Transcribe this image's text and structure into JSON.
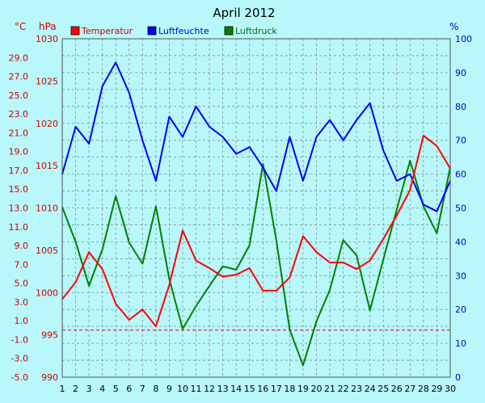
{
  "chart_data": {
    "type": "line",
    "title": "April 2012",
    "units": {
      "temperature": "°C",
      "pressure": "hPa",
      "humidity": "%"
    },
    "x": [
      1,
      2,
      3,
      4,
      5,
      6,
      7,
      8,
      9,
      10,
      11,
      12,
      13,
      14,
      15,
      16,
      17,
      18,
      19,
      20,
      21,
      22,
      23,
      24,
      25,
      26,
      27,
      28,
      29,
      30
    ],
    "series": [
      {
        "name": "Temperatur",
        "axis": "temperature",
        "color": "#ff0000",
        "values": [
          3.3,
          5.1,
          8.3,
          6.5,
          2.8,
          1.1,
          2.2,
          0.4,
          4.8,
          10.6,
          7.4,
          6.6,
          5.7,
          5.9,
          6.6,
          4.2,
          4.2,
          5.6,
          10.0,
          8.3,
          7.2,
          7.2,
          6.5,
          7.4,
          9.7,
          12.2,
          14.9,
          20.7,
          19.6,
          17.2
        ]
      },
      {
        "name": "Luftfeuchte",
        "axis": "humidity",
        "color": "#0000ff",
        "values": [
          60,
          74,
          69,
          86,
          93,
          84,
          70,
          58,
          77,
          71,
          80,
          74,
          71,
          66,
          68,
          62,
          55,
          71,
          58,
          71,
          76,
          70,
          76,
          81,
          67,
          58,
          60,
          51,
          49,
          58
        ]
      },
      {
        "name": "Luftdruck",
        "axis": "pressure",
        "color": "#008000",
        "values": [
          1010.1,
          1006.0,
          1000.8,
          1005.1,
          1011.4,
          1005.9,
          1003.4,
          1010.2,
          1001.6,
          995.7,
          998.4,
          1000.8,
          1003.1,
          1002.7,
          1005.6,
          1015.2,
          1006.2,
          995.6,
          991.4,
          996.6,
          1000.3,
          1006.2,
          1004.4,
          997.9,
          1003.9,
          1009.8,
          1015.6,
          1010.2,
          1007.0,
          1014.8
        ]
      }
    ],
    "reference_line": {
      "axis": "temperature",
      "value": 0,
      "color": "#e00000",
      "style": "dashed"
    },
    "axes": {
      "temperature": {
        "ticks": [
          "-5.0",
          "-3.0",
          "-1.0",
          "1.0",
          "3.0",
          "5.0",
          "7.0",
          "9.0",
          "11.0",
          "13.0",
          "15.0",
          "17.0",
          "19.0",
          "21.0",
          "23.0",
          "25.0",
          "27.0",
          "29.0"
        ],
        "range": [
          -5,
          31
        ]
      },
      "pressure": {
        "ticks": [
          "990",
          "995",
          "1000",
          "1005",
          "1010",
          "1015",
          "1020",
          "1025",
          "1030"
        ],
        "range": [
          990,
          1030
        ]
      },
      "humidity": {
        "ticks": [
          "0",
          "10",
          "20",
          "30",
          "40",
          "50",
          "60",
          "70",
          "80",
          "90",
          "100"
        ],
        "range": [
          0,
          100
        ]
      },
      "x_ticks": [
        "1",
        "2",
        "3",
        "4",
        "5",
        "6",
        "7",
        "8",
        "9",
        "10",
        "11",
        "12",
        "13",
        "14",
        "15",
        "16",
        "17",
        "18",
        "19",
        "20",
        "21",
        "22",
        "23",
        "24",
        "25",
        "26",
        "27",
        "28",
        "29",
        "30"
      ]
    },
    "grid": true,
    "legend": "top-left",
    "colors": {
      "background": "#b8f8fa",
      "plot_background": "#b8f8fa",
      "grid": "#8a8a8a",
      "axis_text_left": "#d00000",
      "axis_text_right": "#0000d0"
    }
  }
}
